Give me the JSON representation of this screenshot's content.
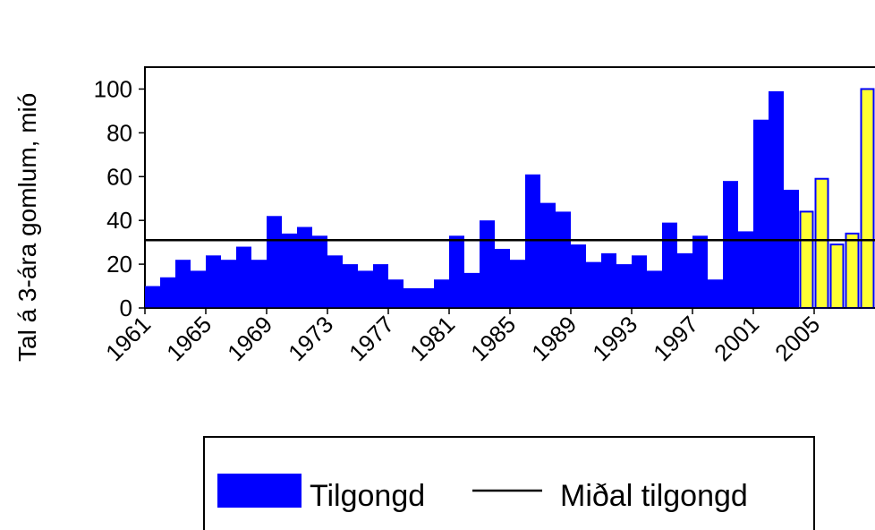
{
  "chart_data": {
    "type": "bar",
    "y_label": "Tal á 3-ára gomlum, mió",
    "categories": [
      "1961",
      null,
      null,
      null,
      "1965",
      null,
      null,
      null,
      "1969",
      null,
      null,
      null,
      "1973",
      null,
      null,
      null,
      "1977",
      null,
      null,
      null,
      "1981",
      null,
      null,
      null,
      "1985",
      null,
      null,
      null,
      "1989",
      null,
      null,
      null,
      "1993",
      null,
      null,
      null,
      "1997",
      null,
      null,
      null,
      "2001",
      null,
      null,
      null,
      "2005",
      null,
      null,
      null
    ],
    "series": [
      {
        "name": "Tilgongd",
        "color": "#0000ff",
        "values": [
          10,
          14,
          22,
          17,
          24,
          22,
          28,
          22,
          42,
          34,
          37,
          33,
          24,
          20,
          17,
          20,
          13,
          9,
          9,
          13,
          33,
          16,
          40,
          27,
          22,
          61,
          48,
          44,
          29,
          21,
          25,
          20,
          24,
          17,
          39,
          25,
          33,
          13,
          58,
          35,
          86,
          99,
          54,
          44,
          59,
          29,
          34,
          100
        ],
        "colors": [
          "#0000ff",
          "#0000ff",
          "#0000ff",
          "#0000ff",
          "#0000ff",
          "#0000ff",
          "#0000ff",
          "#0000ff",
          "#0000ff",
          "#0000ff",
          "#0000ff",
          "#0000ff",
          "#0000ff",
          "#0000ff",
          "#0000ff",
          "#0000ff",
          "#0000ff",
          "#0000ff",
          "#0000ff",
          "#0000ff",
          "#0000ff",
          "#0000ff",
          "#0000ff",
          "#0000ff",
          "#0000ff",
          "#0000ff",
          "#0000ff",
          "#0000ff",
          "#0000ff",
          "#0000ff",
          "#0000ff",
          "#0000ff",
          "#0000ff",
          "#0000ff",
          "#0000ff",
          "#0000ff",
          "#0000ff",
          "#0000ff",
          "#0000ff",
          "#0000ff",
          "#0000ff",
          "#0000ff",
          "#0000ff",
          "#ffff33",
          "#ffff33",
          "#ffff33",
          "#ffff33",
          "#ffff33"
        ]
      }
    ],
    "mean_line": {
      "name": "Miðal tilgongd",
      "value": 31,
      "color": "#000000"
    },
    "ylim": [
      0,
      110
    ],
    "yticks": [
      0,
      20,
      40,
      60,
      80,
      100
    ],
    "grid": false
  }
}
